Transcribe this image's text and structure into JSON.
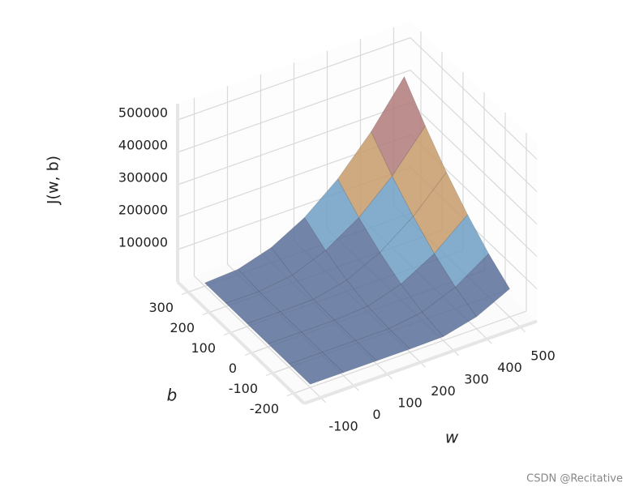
{
  "chart_data": {
    "type": "surface3d",
    "xlabel": "w",
    "ylabel": "b",
    "zlabel": "J(w, b)",
    "xlim": [
      -150,
      550
    ],
    "ylim": [
      -250,
      350
    ],
    "zlim": [
      0,
      550000
    ],
    "xticks": [
      -100,
      0,
      100,
      200,
      300,
      400,
      500
    ],
    "yticks": [
      -200,
      -100,
      0,
      100,
      200,
      300
    ],
    "zticks": [
      100000,
      200000,
      300000,
      400000,
      500000
    ],
    "grid": true,
    "surface": {
      "w": [
        -100,
        0,
        100,
        200,
        300,
        400,
        500
      ],
      "b": [
        -200,
        -100,
        0,
        100,
        200,
        300
      ],
      "z": [
        [
          10000,
          10000,
          10000,
          10000,
          12000,
          37000,
          87000
        ],
        [
          10000,
          10000,
          10000,
          10000,
          25000,
          66000,
          133000
        ],
        [
          10000,
          10000,
          10000,
          17000,
          49000,
          107000,
          191000
        ],
        [
          10000,
          10000,
          12000,
          35000,
          84000,
          159000,
          259000
        ],
        [
          10000,
          10000,
          24000,
          64000,
          129000,
          221000,
          339000
        ],
        [
          10000,
          16000,
          47000,
          103000,
          186000,
          295000,
          429000
        ]
      ],
      "colors": [
        "#5a6f9a",
        "#6f9fc4",
        "#c79b6b",
        "#b07a7a",
        "#c98bc9",
        "#8c86a6"
      ]
    },
    "watermark": "CSDN @Recitative"
  }
}
